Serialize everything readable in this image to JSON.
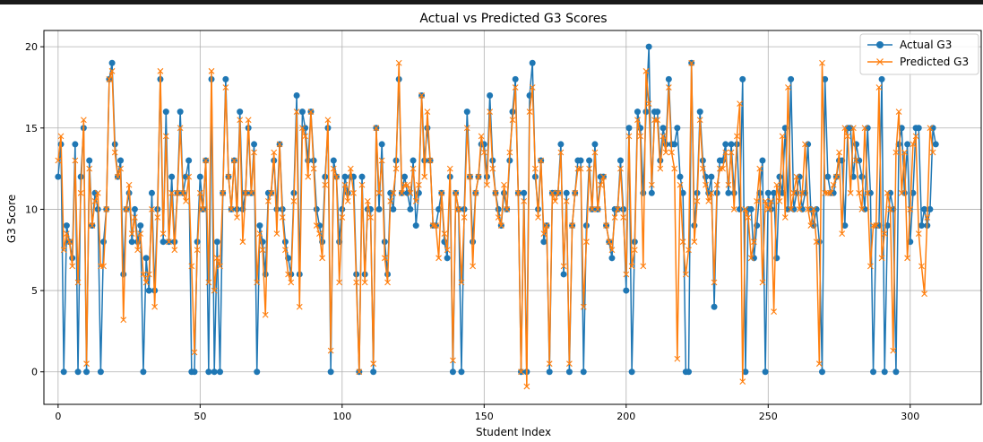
{
  "chart_data": {
    "type": "line",
    "title": "Actual vs Predicted G3 Scores",
    "xlabel": "Student Index",
    "ylabel": "G3 Score",
    "xlim": [
      -5,
      325
    ],
    "ylim": [
      -2,
      21
    ],
    "xticks": [
      0,
      50,
      100,
      150,
      200,
      250,
      300
    ],
    "yticks": [
      0,
      5,
      10,
      15,
      20
    ],
    "grid": true,
    "legend_position": "upper-right",
    "series": [
      {
        "name": "Actual G3",
        "color": "#1f77b4",
        "marker": "circle",
        "values": [
          12,
          14,
          0,
          9,
          8,
          7,
          14,
          0,
          12,
          15,
          0,
          13,
          9,
          11,
          10,
          0,
          8,
          10,
          18,
          19,
          14,
          12,
          13,
          6,
          10,
          11,
          8,
          10,
          8,
          9,
          0,
          7,
          5,
          11,
          5,
          10,
          18,
          8,
          16,
          8,
          12,
          8,
          11,
          16,
          11,
          12,
          13,
          0,
          0,
          8,
          12,
          10,
          13,
          0,
          18,
          0,
          8,
          0,
          11,
          18,
          12,
          10,
          13,
          10,
          16,
          10,
          11,
          15,
          11,
          14,
          0,
          9,
          8,
          6,
          11,
          11,
          13,
          10,
          14,
          10,
          8,
          7,
          6,
          11,
          17,
          6,
          16,
          15,
          13,
          16,
          13,
          10,
          9,
          8,
          12,
          15,
          0,
          13,
          12,
          8,
          10,
          12,
          11,
          12,
          12,
          6,
          0,
          12,
          6,
          10,
          10,
          0,
          15,
          10,
          14,
          8,
          6,
          11,
          10,
          13,
          18,
          11,
          12,
          11,
          10,
          13,
          9,
          11,
          17,
          13,
          15,
          13,
          9,
          9,
          10,
          11,
          8,
          7,
          12,
          0,
          11,
          10,
          0,
          10,
          16,
          12,
          8,
          11,
          12,
          14,
          14,
          12,
          17,
          13,
          11,
          10,
          9,
          11,
          10,
          13,
          16,
          18,
          11,
          0,
          11,
          0,
          17,
          19,
          12,
          10,
          13,
          8,
          9,
          0,
          11,
          11,
          11,
          14,
          6,
          11,
          0,
          9,
          11,
          13,
          13,
          0,
          9,
          13,
          10,
          14,
          10,
          12,
          12,
          9,
          8,
          7,
          10,
          10,
          13,
          10,
          5,
          15,
          0,
          8,
          16,
          15,
          11,
          16,
          20,
          11,
          16,
          16,
          13,
          15,
          14,
          18,
          14,
          14,
          15,
          12,
          11,
          0,
          0,
          19,
          9,
          11,
          16,
          13,
          12,
          11,
          12,
          4,
          11,
          13,
          13,
          14,
          11,
          14,
          11,
          14,
          10,
          18,
          0,
          10,
          10,
          7,
          9,
          11,
          13,
          0,
          11,
          10,
          11,
          7,
          12,
          11,
          15,
          10,
          18,
          10,
          11,
          12,
          10,
          11,
          14,
          10,
          9,
          10,
          8,
          0,
          18,
          12,
          11,
          11,
          12,
          13,
          13,
          9,
          15,
          15,
          12,
          14,
          13,
          12,
          10,
          15,
          11,
          0,
          9,
          9,
          18,
          0,
          9,
          11,
          10,
          0,
          14,
          15,
          11,
          14,
          8,
          11,
          15,
          15,
          9,
          10,
          9,
          10,
          15,
          14
        ]
      },
      {
        "name": "Predicted G3",
        "color": "#ff7f0e",
        "marker": "x",
        "values": [
          13,
          14.5,
          7.5,
          8.5,
          8,
          6.5,
          13,
          5.5,
          11,
          15.5,
          0.5,
          12.5,
          9,
          10.5,
          11,
          6.5,
          6.5,
          10,
          18,
          18.5,
          13.5,
          12,
          12.5,
          3.2,
          10,
          11.5,
          8.5,
          9.5,
          7.5,
          8.5,
          6,
          5.5,
          6,
          10,
          4,
          9.5,
          18.5,
          8.5,
          14.5,
          8,
          11,
          7.5,
          11,
          15,
          11,
          10.5,
          12,
          6.5,
          1.2,
          7.5,
          11,
          10,
          13,
          5.5,
          18.5,
          5,
          7,
          6.5,
          11,
          17.5,
          12,
          10,
          13,
          9.5,
          15.5,
          8,
          11,
          15.5,
          11,
          13.5,
          5.5,
          8.5,
          7.5,
          3.5,
          10.5,
          11,
          13.5,
          8.5,
          14,
          9.5,
          7.5,
          6,
          5.5,
          10.5,
          16,
          4,
          15,
          14.5,
          12,
          16,
          12.5,
          9,
          8.5,
          7,
          11.5,
          15.5,
          1.3,
          12.5,
          12,
          5.5,
          9.5,
          11.5,
          10.5,
          12.5,
          11,
          5.5,
          0,
          11.5,
          5.5,
          10.5,
          9.5,
          0.5,
          15,
          11,
          13,
          7,
          5.5,
          10.5,
          11,
          12.5,
          19,
          11,
          11.5,
          11.5,
          11,
          12.5,
          10.5,
          11.5,
          17,
          12,
          16,
          13,
          9,
          9,
          7,
          11,
          8.5,
          7.5,
          12.5,
          0.7,
          11,
          10,
          5.5,
          9.5,
          15,
          12,
          6.5,
          11,
          12,
          14.5,
          13.5,
          11.5,
          16,
          12.5,
          11,
          9.5,
          9,
          11.5,
          10,
          13.5,
          15.5,
          17.5,
          11,
          0,
          10.5,
          -0.9,
          16,
          17.5,
          12.5,
          9.5,
          13,
          8.5,
          9,
          0.5,
          11,
          10.5,
          11,
          13.5,
          6.5,
          10.5,
          0.5,
          9,
          11,
          12.5,
          12.5,
          4,
          8,
          12.5,
          10,
          13.5,
          10,
          11.5,
          12,
          9,
          8,
          7.5,
          9.5,
          10,
          12.5,
          9.5,
          6,
          14.5,
          6.5,
          7.5,
          15.5,
          14.5,
          6.5,
          18.5,
          16.5,
          11.5,
          15.5,
          15.5,
          12.5,
          14.5,
          13.5,
          17.5,
          13.5,
          12.5,
          0.8,
          11.5,
          8,
          6,
          7.5,
          19,
          8,
          10.5,
          15.5,
          12.5,
          11.5,
          10.5,
          11,
          5.5,
          11.5,
          12.5,
          12.5,
          13.5,
          11.5,
          13.5,
          10,
          14.5,
          16.5,
          -0.6,
          10,
          9.5,
          7,
          8,
          10.5,
          12.5,
          5.5,
          10.5,
          10,
          10.5,
          3.7,
          11.5,
          10.5,
          14.5,
          9.5,
          17.5,
          10,
          11,
          12,
          10,
          11,
          14,
          10,
          9,
          10,
          8,
          0.5,
          19,
          11,
          11,
          11,
          11.5,
          12,
          13.5,
          8.5,
          15,
          14.5,
          11,
          15,
          13,
          11,
          10,
          15,
          11,
          6.5,
          9,
          9,
          17.5,
          7,
          8.5,
          11,
          10,
          1.3,
          13.5,
          16,
          11,
          13.5,
          7,
          10,
          14,
          14.5,
          8.5,
          6.5,
          4.8,
          9.5,
          15,
          13.5
        ]
      }
    ]
  }
}
